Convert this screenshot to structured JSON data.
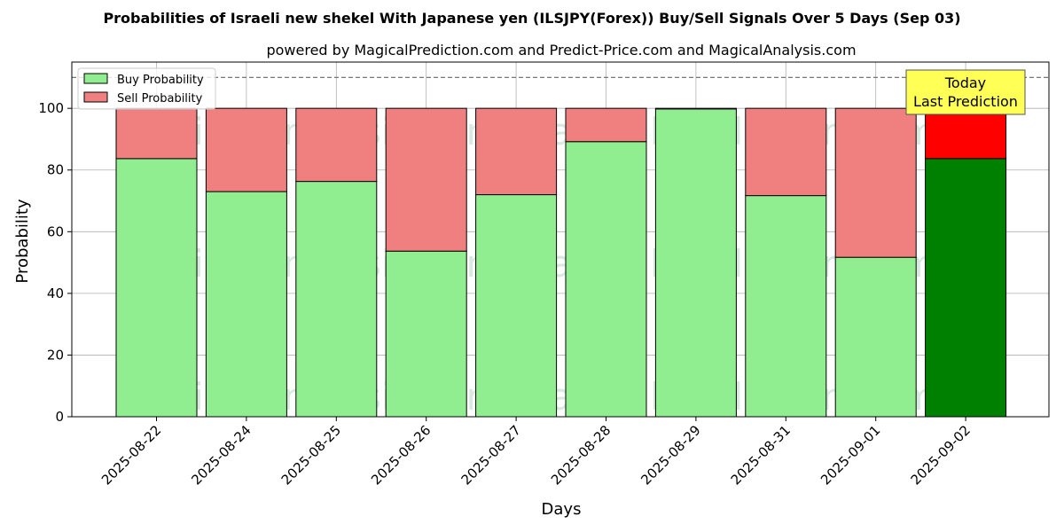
{
  "chart_data": {
    "type": "bar",
    "stacked": true,
    "title": "Probabilities of Israeli new shekel With Japanese yen (ILSJPY(Forex)) Buy/Sell Signals Over 5 Days (Sep 03)",
    "subtitle": "powered by MagicalPrediction.com and Predict-Price.com and MagicalAnalysis.com",
    "xlabel": "Days",
    "ylabel": "Probability",
    "ylim": [
      0,
      115
    ],
    "yticks": [
      0,
      20,
      40,
      60,
      80,
      100
    ],
    "reference_line": 110,
    "grid": true,
    "legend_position": "top-left",
    "categories": [
      "2025-08-22",
      "2025-08-24",
      "2025-08-25",
      "2025-08-26",
      "2025-08-27",
      "2025-08-28",
      "2025-08-29",
      "2025-08-31",
      "2025-09-01",
      "2025-09-02"
    ],
    "series": [
      {
        "name": "Buy Probability",
        "color": "#90ee90",
        "highlight_color": "#008000",
        "values": [
          83.7,
          73.0,
          76.3,
          53.7,
          72.0,
          89.2,
          99.8,
          71.7,
          51.7,
          83.7
        ]
      },
      {
        "name": "Sell Probability",
        "color": "#f08080",
        "highlight_color": "#ff0000",
        "values": [
          16.3,
          27.0,
          23.7,
          46.3,
          28.0,
          10.8,
          0.2,
          28.3,
          48.3,
          16.3
        ]
      }
    ],
    "highlight_index": 9,
    "annotation": {
      "line1": "Today",
      "line2": "Last Prediction",
      "color": "#ffff55"
    },
    "watermarks": [
      "MagicalAnalysis.com",
      "MagicalPrediction.com",
      "MagicalAnalysis.com",
      "MagicalPrediction.com",
      "MagicalAnalysis.com",
      "MagicalPrediction.com"
    ]
  }
}
